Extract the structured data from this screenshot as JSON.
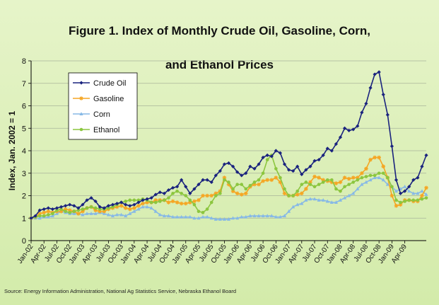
{
  "chart_data": {
    "type": "line",
    "title_line1": "Figure 1. Index of Monthly Crude Oil, Gasoline, Corn,",
    "title_line2": "and Ethanol Prices",
    "ylabel": "Index, Jan. 2002 = 1",
    "xlabel": "",
    "ylim": [
      0,
      8
    ],
    "yticks": [
      "0",
      "1",
      "2",
      "3",
      "4",
      "5",
      "6",
      "7",
      "8"
    ],
    "grid": true,
    "legend_position": "top-left",
    "x_tick_labels": [
      "Jan-02",
      "Apr-02",
      "Jul-02",
      "Oct-02",
      "Jan-03",
      "Apr-03",
      "Jul-03",
      "Oct-03",
      "Jan-04",
      "Apr-04",
      "Jul-04",
      "Oct-04",
      "Jan-05",
      "Apr-05",
      "Jul-05",
      "Oct-05",
      "Jan-06",
      "Apr-06",
      "Jul-06",
      "Oct-06",
      "Jan-07",
      "Apr-07",
      "Jul-07",
      "Oct-07",
      "Jan-08",
      "Apr-08",
      "Jul-08",
      "Oct-08",
      "Jan-09",
      "Apr-09"
    ],
    "series": [
      {
        "name": "Crude Oil",
        "color": "#1a237e",
        "marker": "diamond",
        "values": [
          1.0,
          1.1,
          1.35,
          1.4,
          1.45,
          1.4,
          1.45,
          1.5,
          1.55,
          1.6,
          1.55,
          1.45,
          1.6,
          1.8,
          1.9,
          1.75,
          1.5,
          1.45,
          1.55,
          1.6,
          1.65,
          1.7,
          1.6,
          1.55,
          1.6,
          1.7,
          1.8,
          1.85,
          1.9,
          2.05,
          2.15,
          2.1,
          2.25,
          2.35,
          2.4,
          2.7,
          2.4,
          2.1,
          2.3,
          2.5,
          2.7,
          2.7,
          2.6,
          2.9,
          3.1,
          3.4,
          3.45,
          3.3,
          3.05,
          2.9,
          3.0,
          3.3,
          3.2,
          3.4,
          3.7,
          3.8,
          3.75,
          4.0,
          3.9,
          3.4,
          3.15,
          3.1,
          3.3,
          2.95,
          3.15,
          3.3,
          3.55,
          3.6,
          3.8,
          4.1,
          4.0,
          4.3,
          4.6,
          5.0,
          4.9,
          4.95,
          5.1,
          5.7,
          6.1,
          6.8,
          7.4,
          7.5,
          6.5,
          5.6,
          4.2,
          2.7,
          2.1,
          2.2,
          2.4,
          2.7,
          2.8,
          3.3,
          3.8
        ]
      },
      {
        "name": "Gasoline",
        "color": "#f5a623",
        "marker": "star",
        "values": [
          1.0,
          1.05,
          1.2,
          1.25,
          1.3,
          1.25,
          1.3,
          1.3,
          1.4,
          1.35,
          1.3,
          1.2,
          1.3,
          1.45,
          1.5,
          1.35,
          1.3,
          1.3,
          1.4,
          1.45,
          1.5,
          1.55,
          1.45,
          1.4,
          1.45,
          1.55,
          1.65,
          1.7,
          1.7,
          1.8,
          1.8,
          1.8,
          1.7,
          1.75,
          1.7,
          1.65,
          1.65,
          1.7,
          1.75,
          1.8,
          2.0,
          2.0,
          2.0,
          2.1,
          2.2,
          2.8,
          2.5,
          2.2,
          2.1,
          2.05,
          2.1,
          2.4,
          2.5,
          2.5,
          2.65,
          2.7,
          2.7,
          2.8,
          2.6,
          2.1,
          2.0,
          2.0,
          2.05,
          2.1,
          2.3,
          2.6,
          2.85,
          2.8,
          2.7,
          2.65,
          2.6,
          2.55,
          2.6,
          2.8,
          2.75,
          2.8,
          2.8,
          3.0,
          3.2,
          3.6,
          3.7,
          3.7,
          3.3,
          2.8,
          2.0,
          1.55,
          1.6,
          1.8,
          1.8,
          1.75,
          1.75,
          2.0,
          2.35
        ]
      },
      {
        "name": "Corn",
        "color": "#87b9e6",
        "marker": "triangle",
        "values": [
          1.0,
          1.0,
          1.0,
          1.05,
          1.05,
          1.1,
          1.2,
          1.3,
          1.25,
          1.2,
          1.2,
          1.2,
          1.15,
          1.2,
          1.2,
          1.2,
          1.25,
          1.2,
          1.15,
          1.1,
          1.15,
          1.15,
          1.1,
          1.2,
          1.3,
          1.4,
          1.5,
          1.5,
          1.45,
          1.3,
          1.15,
          1.1,
          1.1,
          1.05,
          1.05,
          1.05,
          1.05,
          1.05,
          1.0,
          1.0,
          1.05,
          1.05,
          1.0,
          0.95,
          0.95,
          0.95,
          0.95,
          1.0,
          1.0,
          1.05,
          1.05,
          1.1,
          1.1,
          1.1,
          1.1,
          1.1,
          1.1,
          1.05,
          1.05,
          1.1,
          1.3,
          1.5,
          1.6,
          1.65,
          1.8,
          1.85,
          1.85,
          1.8,
          1.8,
          1.75,
          1.7,
          1.7,
          1.8,
          1.9,
          2.0,
          2.1,
          2.3,
          2.5,
          2.6,
          2.7,
          2.8,
          2.8,
          2.7,
          2.5,
          2.4,
          2.2,
          2.3,
          2.4,
          2.2,
          2.1,
          2.1,
          2.2,
          2.05
        ]
      },
      {
        "name": "Ethanol",
        "color": "#8cc63f",
        "marker": "circle",
        "values": [
          1.0,
          1.05,
          1.1,
          1.1,
          1.15,
          1.2,
          1.35,
          1.4,
          1.3,
          1.25,
          1.3,
          1.35,
          1.4,
          1.45,
          1.5,
          1.45,
          1.4,
          1.4,
          1.45,
          1.5,
          1.6,
          1.7,
          1.75,
          1.8,
          1.8,
          1.8,
          1.85,
          1.8,
          1.7,
          1.7,
          1.75,
          1.8,
          1.9,
          2.1,
          2.2,
          2.1,
          2.0,
          1.8,
          1.6,
          1.3,
          1.25,
          1.4,
          1.7,
          2.0,
          2.1,
          2.7,
          2.6,
          2.3,
          2.5,
          2.5,
          2.3,
          2.45,
          2.6,
          2.7,
          3.0,
          3.6,
          3.8,
          3.2,
          2.8,
          2.3,
          2.0,
          2.0,
          2.2,
          2.5,
          2.6,
          2.5,
          2.4,
          2.5,
          2.6,
          2.7,
          2.7,
          2.3,
          2.2,
          2.4,
          2.5,
          2.6,
          2.7,
          2.8,
          2.85,
          2.9,
          2.9,
          3.0,
          3.0,
          2.8,
          2.4,
          1.8,
          1.7,
          1.75,
          1.8,
          1.8,
          1.8,
          1.85,
          1.9
        ]
      }
    ]
  },
  "source_note": "Source: Energy Information Administration, National Ag Statistics Service, Nebraska Ethanol Board"
}
